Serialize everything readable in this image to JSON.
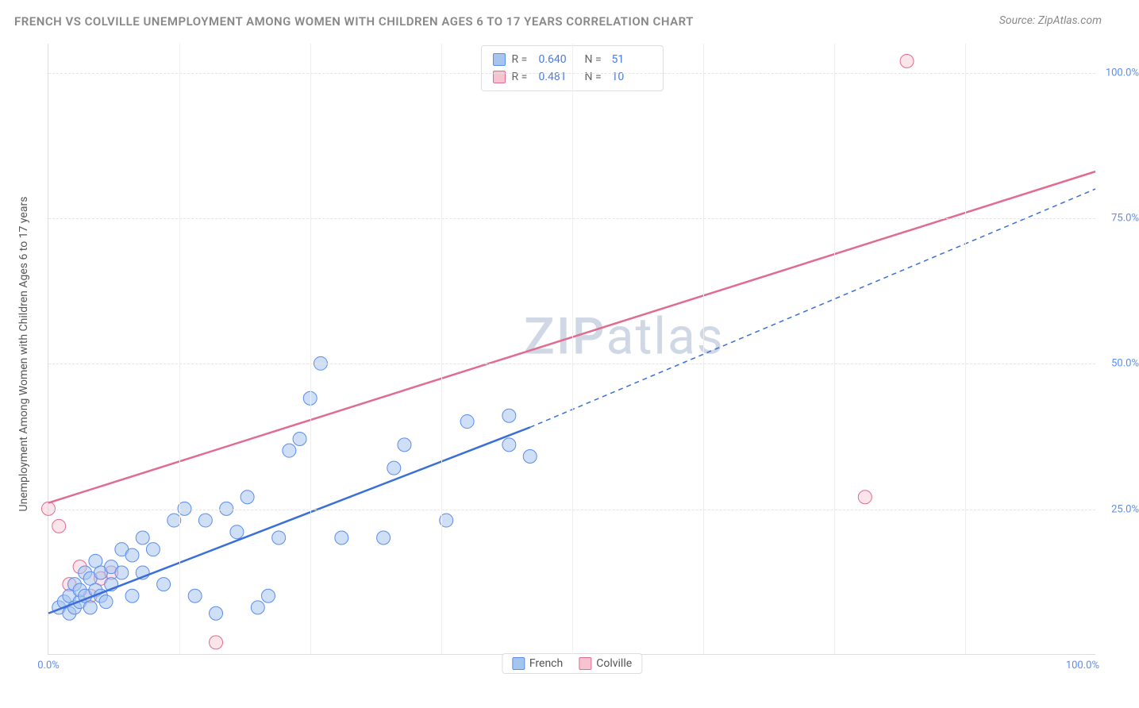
{
  "title": "FRENCH VS COLVILLE UNEMPLOYMENT AMONG WOMEN WITH CHILDREN AGES 6 TO 17 YEARS CORRELATION CHART",
  "source": "Source: ZipAtlas.com",
  "ylabel": "Unemployment Among Women with Children Ages 6 to 17 years",
  "watermark_a": "ZIP",
  "watermark_b": "atlas",
  "colors": {
    "french_fill": "#a5c4ee",
    "french_stroke": "#5b8def",
    "colville_fill": "#f6c4d0",
    "colville_stroke": "#e06c8f",
    "french_line": "#3a6fd8",
    "colville_line": "#e06c8f",
    "grid": "#e4e4e4",
    "axis_text": "#5b8def",
    "title_text": "#888888"
  },
  "chart": {
    "type": "scatter",
    "xlim": [
      0,
      100
    ],
    "ylim": [
      0,
      105
    ],
    "yticks": [
      25,
      50,
      75,
      100
    ],
    "ytick_labels": [
      "25.0%",
      "50.0%",
      "75.0%",
      "100.0%"
    ],
    "xticks_minor": [
      12.5,
      25,
      37.5,
      50,
      62.5,
      75,
      87.5
    ],
    "x_left_label": "0.0%",
    "x_right_label": "100.0%"
  },
  "legend_top": [
    {
      "swatch_fill": "#a5c4ee",
      "swatch_stroke": "#5b8def",
      "r_label": "R =",
      "r_value": "0.640",
      "n_label": "N =",
      "n_value": "51"
    },
    {
      "swatch_fill": "#f6c4d0",
      "swatch_stroke": "#e06c8f",
      "r_label": "R =",
      "r_value": "0.481",
      "n_label": "N =",
      "n_value": "10"
    }
  ],
  "legend_bottom": [
    {
      "swatch_fill": "#a5c4ee",
      "swatch_stroke": "#5b8def",
      "label": "French"
    },
    {
      "swatch_fill": "#f6c4d0",
      "swatch_stroke": "#e06c8f",
      "label": "Colville"
    }
  ],
  "series": {
    "french": {
      "points": [
        [
          1,
          8
        ],
        [
          1.5,
          9
        ],
        [
          2,
          7
        ],
        [
          2,
          10
        ],
        [
          2.5,
          8
        ],
        [
          2.5,
          12
        ],
        [
          3,
          9
        ],
        [
          3,
          11
        ],
        [
          3.5,
          10
        ],
        [
          3.5,
          14
        ],
        [
          4,
          8
        ],
        [
          4,
          13
        ],
        [
          4.5,
          11
        ],
        [
          4.5,
          16
        ],
        [
          5,
          10
        ],
        [
          5,
          14
        ],
        [
          5.5,
          9
        ],
        [
          6,
          12
        ],
        [
          6,
          15
        ],
        [
          7,
          14
        ],
        [
          7,
          18
        ],
        [
          8,
          10
        ],
        [
          8,
          17
        ],
        [
          9,
          14
        ],
        [
          9,
          20
        ],
        [
          10,
          18
        ],
        [
          11,
          12
        ],
        [
          12,
          23
        ],
        [
          13,
          25
        ],
        [
          14,
          10
        ],
        [
          15,
          23
        ],
        [
          16,
          7
        ],
        [
          17,
          25
        ],
        [
          18,
          21
        ],
        [
          19,
          27
        ],
        [
          20,
          8
        ],
        [
          21,
          10
        ],
        [
          22,
          20
        ],
        [
          23,
          35
        ],
        [
          24,
          37
        ],
        [
          25,
          44
        ],
        [
          26,
          50
        ],
        [
          28,
          20
        ],
        [
          32,
          20
        ],
        [
          33,
          32
        ],
        [
          34,
          36
        ],
        [
          38,
          23
        ],
        [
          40,
          40
        ],
        [
          44,
          41
        ],
        [
          46,
          34
        ],
        [
          44,
          36
        ]
      ],
      "trend_solid": {
        "x1": 0,
        "y1": 7,
        "x2": 46,
        "y2": 39
      },
      "trend_dashed": {
        "x1": 46,
        "y1": 39,
        "x2": 100,
        "y2": 80
      },
      "marker_r": 8.5,
      "fill_opacity": 0.55
    },
    "colville": {
      "points": [
        [
          0,
          25
        ],
        [
          1,
          22
        ],
        [
          2,
          12
        ],
        [
          3,
          15
        ],
        [
          4,
          10
        ],
        [
          5,
          13
        ],
        [
          6,
          14
        ],
        [
          16,
          2
        ],
        [
          78,
          27
        ],
        [
          82,
          102
        ]
      ],
      "trend_solid": {
        "x1": 0,
        "y1": 26,
        "x2": 100,
        "y2": 83
      },
      "marker_r": 8.5,
      "fill_opacity": 0.45
    }
  }
}
